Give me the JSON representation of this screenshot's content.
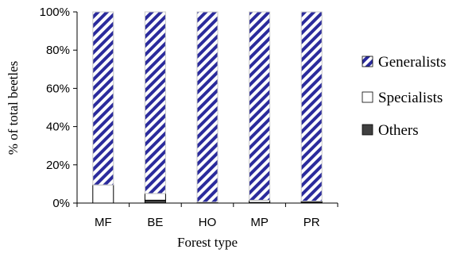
{
  "chart_data": {
    "type": "bar",
    "stacked": true,
    "percent": true,
    "categories": [
      "MF",
      "BE",
      "HO",
      "MP",
      "PR"
    ],
    "series": [
      {
        "name": "Generalists",
        "values": [
          90.5,
          95,
          99.5,
          98.5,
          99
        ],
        "pattern": "diagonal-stripes",
        "color": "#2b2b9c"
      },
      {
        "name": "Specialists",
        "values": [
          9.5,
          3.5,
          0.3,
          1.2,
          0.5
        ],
        "pattern": "solid",
        "color": "#ffffff"
      },
      {
        "name": "Others",
        "values": [
          0,
          1.5,
          0.2,
          0.3,
          0.5
        ],
        "pattern": "solid",
        "color": "#404040"
      }
    ],
    "xlabel": "Forest type",
    "ylabel": "% of total beetles",
    "ylim": [
      0,
      100
    ],
    "yticks": [
      "0%",
      "20%",
      "40%",
      "60%",
      "80%",
      "100%"
    ],
    "grid": false,
    "legend_position": "right"
  }
}
